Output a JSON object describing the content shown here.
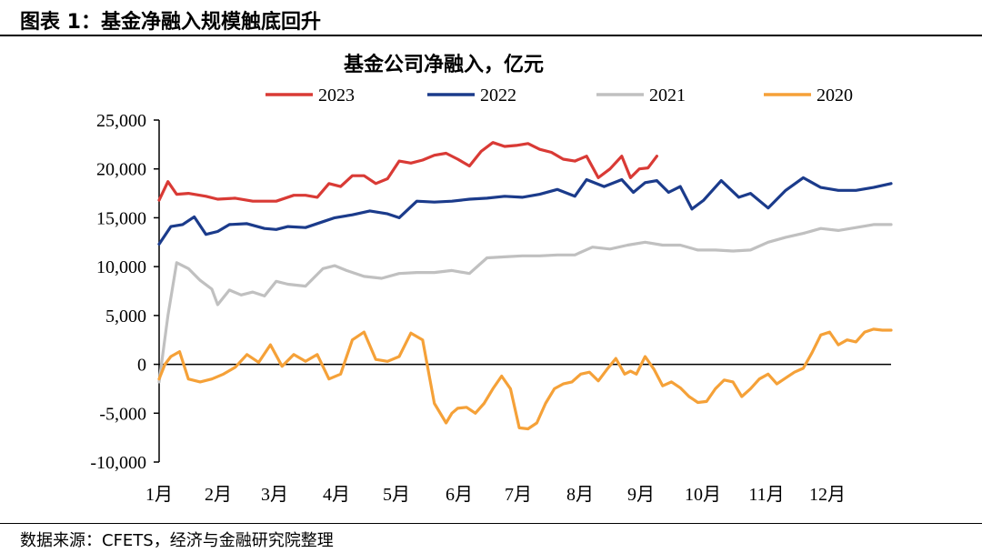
{
  "header": {
    "title": "图表 1：基金净融入规模触底回升"
  },
  "footer": {
    "source": "数据来源：CFETS，经济与金融研究院整理"
  },
  "chart_data": {
    "type": "line",
    "title": "基金公司净融入，亿元",
    "x_categories": [
      "1月",
      "2月",
      "3月",
      "4月",
      "5月",
      "6月",
      "7月",
      "8月",
      "9月",
      "10月",
      "11月",
      "12月"
    ],
    "ylim": [
      -10000,
      25000
    ],
    "yticks": [
      -10000,
      -5000,
      0,
      5000,
      10000,
      15000,
      20000,
      25000
    ],
    "ytick_labels": [
      "-10,000",
      "-5,000",
      "0",
      "5,000",
      "10,000",
      "15,000",
      "20,000",
      "25,000"
    ],
    "grid": false,
    "legend_placement": "top",
    "series": [
      {
        "name": "2023",
        "color": "#d93a35",
        "x": [
          1.0,
          1.15,
          1.3,
          1.5,
          1.8,
          2.0,
          2.3,
          2.6,
          3.0,
          3.3,
          3.5,
          3.7,
          3.9,
          4.1,
          4.3,
          4.5,
          4.7,
          4.9,
          5.1,
          5.3,
          5.5,
          5.7,
          5.9,
          6.1,
          6.3,
          6.5,
          6.7,
          6.9,
          7.1,
          7.3,
          7.5,
          7.7,
          7.9,
          8.1,
          8.3,
          8.5,
          8.7,
          8.9,
          9.05,
          9.2,
          9.35,
          9.5
        ],
        "y": [
          16800,
          18700,
          17400,
          17500,
          17200,
          16900,
          17000,
          16700,
          16700,
          17300,
          17300,
          17100,
          18500,
          18200,
          19300,
          19300,
          18500,
          19000,
          20800,
          20600,
          20900,
          21400,
          21600,
          21000,
          20300,
          21800,
          22700,
          22300,
          22400,
          22600,
          22000,
          21700,
          21000,
          20800,
          21300,
          19100,
          20000,
          21300,
          19100,
          20000,
          20100,
          21300
        ]
      },
      {
        "name": "2022",
        "color": "#1b3b8b",
        "x": [
          1.0,
          1.2,
          1.4,
          1.6,
          1.8,
          2.0,
          2.2,
          2.5,
          2.8,
          3.0,
          3.2,
          3.5,
          3.8,
          4.0,
          4.3,
          4.6,
          4.9,
          5.1,
          5.4,
          5.7,
          6.0,
          6.3,
          6.6,
          6.9,
          7.2,
          7.5,
          7.8,
          8.1,
          8.3,
          8.6,
          8.9,
          9.1,
          9.3,
          9.5,
          9.7,
          9.9,
          10.1,
          10.3,
          10.6,
          10.9,
          11.1,
          11.4,
          11.7,
          12.0,
          12.3,
          12.6,
          12.9,
          13.2,
          13.5
        ],
        "y": [
          12300,
          14100,
          14300,
          15100,
          13300,
          13600,
          14300,
          14400,
          13900,
          13800,
          14100,
          14000,
          14600,
          15000,
          15300,
          15700,
          15400,
          15000,
          16700,
          16600,
          16700,
          16900,
          17000,
          17200,
          17100,
          17400,
          17900,
          17200,
          18900,
          18200,
          18900,
          17600,
          18600,
          18800,
          17600,
          18200,
          15900,
          16800,
          18800,
          17100,
          17500,
          16000,
          17800,
          19100,
          18100,
          17800,
          17800,
          18100,
          18500
        ]
      },
      {
        "name": "2021",
        "color": "#c0c0c0",
        "x": [
          1.0,
          1.15,
          1.3,
          1.5,
          1.7,
          1.9,
          2.0,
          2.2,
          2.4,
          2.6,
          2.8,
          3.0,
          3.2,
          3.5,
          3.8,
          4.0,
          4.2,
          4.5,
          4.8,
          5.1,
          5.4,
          5.7,
          6.0,
          6.3,
          6.6,
          6.9,
          7.2,
          7.5,
          7.8,
          8.1,
          8.4,
          8.7,
          9.0,
          9.3,
          9.6,
          9.9,
          10.2,
          10.5,
          10.8,
          11.1,
          11.4,
          11.7,
          12.0,
          12.3,
          12.6,
          12.9,
          13.2,
          13.5
        ],
        "y": [
          -1800,
          5000,
          10400,
          9800,
          8600,
          7700,
          6100,
          7600,
          7100,
          7400,
          7000,
          8500,
          8200,
          8000,
          9800,
          10100,
          9600,
          9000,
          8800,
          9300,
          9400,
          9400,
          9600,
          9300,
          10900,
          11000,
          11100,
          11100,
          11200,
          11200,
          12000,
          11800,
          12200,
          12500,
          12200,
          12200,
          11700,
          11700,
          11600,
          11700,
          12500,
          13000,
          13400,
          13900,
          13700,
          14000,
          14300,
          14300
        ]
      },
      {
        "name": "2020",
        "color": "#f5a138",
        "x": [
          1.0,
          1.1,
          1.2,
          1.35,
          1.5,
          1.7,
          1.9,
          2.1,
          2.3,
          2.5,
          2.7,
          2.9,
          3.1,
          3.3,
          3.5,
          3.7,
          3.9,
          4.1,
          4.3,
          4.5,
          4.7,
          4.9,
          5.1,
          5.3,
          5.5,
          5.7,
          5.9,
          6.0,
          6.1,
          6.25,
          6.4,
          6.55,
          6.7,
          6.85,
          7.0,
          7.15,
          7.3,
          7.45,
          7.6,
          7.75,
          7.9,
          8.05,
          8.2,
          8.35,
          8.5,
          8.65,
          8.8,
          8.95,
          9.05,
          9.15,
          9.3,
          9.45,
          9.6,
          9.75,
          9.9,
          10.05,
          10.2,
          10.35,
          10.5,
          10.65,
          10.8,
          10.95,
          11.1,
          11.25,
          11.4,
          11.55,
          11.7,
          11.85,
          12.0,
          12.15,
          12.3,
          12.45,
          12.6,
          12.75,
          12.9,
          13.05,
          13.2,
          13.35,
          13.5
        ],
        "y": [
          -1500,
          0,
          800,
          1300,
          -1500,
          -1800,
          -1500,
          -1000,
          -300,
          1000,
          200,
          2000,
          -200,
          1000,
          300,
          1000,
          -1500,
          -1000,
          2500,
          3300,
          500,
          300,
          800,
          3200,
          2500,
          -4000,
          -6000,
          -5000,
          -4500,
          -4400,
          -5000,
          -4000,
          -2500,
          -1200,
          -2500,
          -6500,
          -6600,
          -6000,
          -4000,
          -2500,
          -2000,
          -1800,
          -1000,
          -800,
          -1700,
          -500,
          600,
          -1000,
          -700,
          -1000,
          800,
          -500,
          -2200,
          -1800,
          -2400,
          -3300,
          -3900,
          -3800,
          -2500,
          -1600,
          -1800,
          -3300,
          -2500,
          -1500,
          -1000,
          -2000,
          -1400,
          -800,
          -400,
          1200,
          3000,
          3300,
          2000,
          2500,
          2300,
          3300,
          3600,
          3500,
          3500
        ]
      }
    ]
  }
}
